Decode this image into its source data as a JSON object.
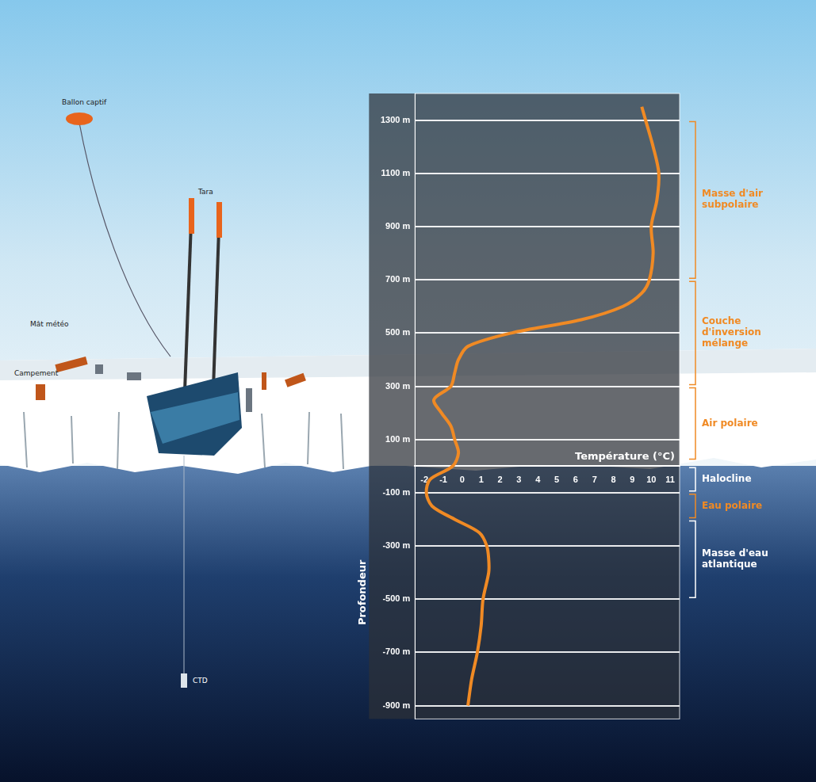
{
  "chart_data": {
    "type": "line",
    "x_label": "Température (°C)",
    "y_label": "Profondeur",
    "x": [
      9.5,
      9.7,
      10.1,
      10.4,
      10.3,
      10.0,
      10.1,
      9.9,
      9.5,
      8.5,
      6.3,
      2.6,
      0.3,
      -0.2,
      -0.4,
      -0.6,
      -1.5,
      -1.1,
      -0.6,
      -0.4,
      -0.2,
      -0.5,
      -1.7,
      -1.9,
      -1.6,
      -0.4,
      0.9,
      1.3,
      1.4,
      1.4,
      1.1,
      1.0,
      0.8,
      0.5,
      0.3
    ],
    "values": [
      1350,
      1300,
      1200,
      1100,
      1000,
      900,
      800,
      700,
      650,
      600,
      550,
      500,
      450,
      400,
      350,
      300,
      250,
      200,
      150,
      100,
      50,
      0,
      -50,
      -100,
      -150,
      -200,
      -250,
      -300,
      -350,
      -400,
      -500,
      -600,
      -700,
      -800,
      -900
    ],
    "color": "#f08a24",
    "marker": "none",
    "grid": true,
    "xlim": [
      -2.5,
      11.5
    ],
    "xticks": [
      -2,
      -1,
      0,
      1,
      2,
      3,
      4,
      5,
      6,
      7,
      8,
      9,
      10,
      11
    ],
    "ylim": [
      -950,
      1400
    ],
    "yticks": [
      {
        "value": 1300,
        "label": "1300 m"
      },
      {
        "value": 1100,
        "label": "1100 m"
      },
      {
        "value": 900,
        "label": "900 m"
      },
      {
        "value": 700,
        "label": "700 m"
      },
      {
        "value": 500,
        "label": "500 m"
      },
      {
        "value": 300,
        "label": "300 m"
      },
      {
        "value": 100,
        "label": "100 m"
      },
      {
        "value": -100,
        "label": "-100 m"
      },
      {
        "value": -300,
        "label": "-300 m"
      },
      {
        "value": -500,
        "label": "-500 m"
      },
      {
        "value": -700,
        "label": "-700 m"
      },
      {
        "value": -900,
        "label": "-900 m"
      }
    ],
    "zones": [
      {
        "label": "Masse d'air subpolaire",
        "from": 1300,
        "to": 700,
        "color": "#f08a24"
      },
      {
        "label": "Couche d'inversion mélange",
        "from": 700,
        "to": 300,
        "color": "#f08a24"
      },
      {
        "label": "Air polaire",
        "from": 300,
        "to": 20,
        "color": "#f08a24"
      },
      {
        "label": "Halocline",
        "from": 0,
        "to": -100,
        "color": "#ffffff"
      },
      {
        "label": "Eau polaire",
        "from": -100,
        "to": -200,
        "color": "#f08a24"
      },
      {
        "label": "Masse d'eau atlantique",
        "from": -200,
        "to": -500,
        "color": "#ffffff"
      }
    ]
  },
  "diagram": {
    "labels": [
      "Ballon captif",
      "Tara",
      "Mât météo",
      "Campement",
      "CTD"
    ]
  }
}
